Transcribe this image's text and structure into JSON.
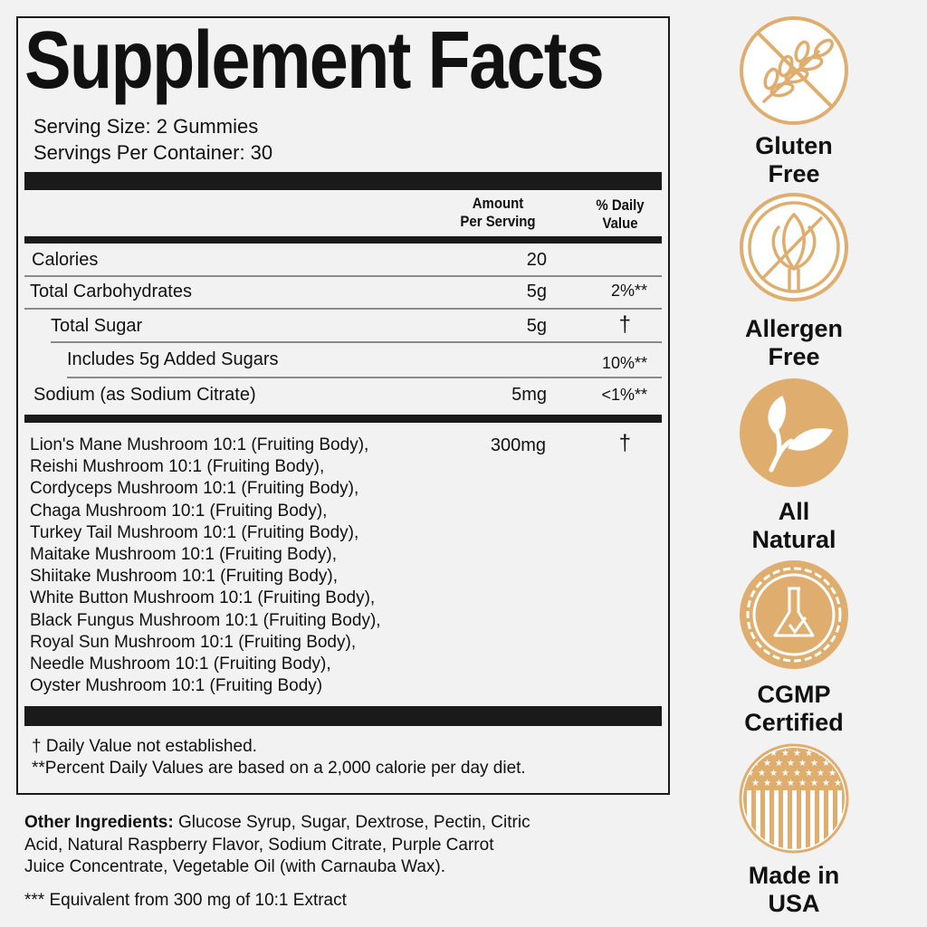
{
  "title": "Supplement Facts",
  "serving_size": "Serving Size: 2 Gummies",
  "servings_per_container": "Servings Per Container: 30",
  "headers": {
    "amount_line1": "Amount",
    "amount_line2": "Per Serving",
    "dv_line1": "% Daily",
    "dv_line2": "Value"
  },
  "nutrients": [
    {
      "name": "Calories",
      "amount": "20",
      "dv": ""
    },
    {
      "name": "Total Carbohydrates",
      "amount": "5g",
      "dv": "2%**"
    },
    {
      "name": "Total Sugar",
      "amount": "5g",
      "dv": "†"
    },
    {
      "name": "Includes 5g Added Sugars",
      "amount": "",
      "dv": "10%**"
    },
    {
      "name": "Sodium (as Sodium Citrate)",
      "amount": "5mg",
      "dv": "<1%**"
    }
  ],
  "blend": {
    "amount": "300mg",
    "dv": "†",
    "ingredients": [
      "Lion's Mane Mushroom 10:1 (Fruiting Body),",
      "Reishi Mushroom 10:1 (Fruiting Body),",
      "Cordyceps Mushroom 10:1 (Fruiting Body),",
      "Chaga Mushroom 10:1 (Fruiting Body),",
      "Turkey Tail Mushroom 10:1 (Fruiting Body),",
      "Maitake Mushroom 10:1 (Fruiting Body),",
      "Shiitake Mushroom 10:1 (Fruiting Body),",
      "White Button Mushroom 10:1 (Fruiting Body),",
      "Black Fungus Mushroom 10:1 (Fruiting Body),",
      "Royal Sun Mushroom 10:1 (Fruiting Body),",
      "Needle Mushroom 10:1 (Fruiting Body),",
      "Oyster Mushroom 10:1 (Fruiting Body)"
    ]
  },
  "footnotes": [
    "† Daily Value not established.",
    "**Percent Daily Values are based on a 2,000 calorie per day diet."
  ],
  "other_ingredients": {
    "label": "Other Ingredients:",
    "lines": [
      " Glucose Syrup, Sugar, Dextrose, Pectin, Citric",
      "Acid, Natural Raspberry Flavor, Sodium Citrate, Purple Carrot",
      "Juice Concentrate, Vegetable Oil (with Carnauba Wax)."
    ]
  },
  "extract_note": "*** Equivalent from 300 mg of 10:1 Extract",
  "badges": [
    {
      "icon": "gluten-free-icon",
      "line1": "Gluten",
      "line2": "Free"
    },
    {
      "icon": "allergen-free-icon",
      "line1": "Allergen",
      "line2": "Free"
    },
    {
      "icon": "leaf-icon",
      "line1": "All",
      "line2": "Natural"
    },
    {
      "icon": "flask-seal-icon",
      "line1": "CGMP",
      "line2": "Certified"
    },
    {
      "icon": "usa-flag-icon",
      "line1": "Made in",
      "line2": "USA"
    }
  ],
  "colors": {
    "accent": "#dfae6e",
    "background": "#f2f2f2",
    "ink": "#1a1a1a"
  }
}
